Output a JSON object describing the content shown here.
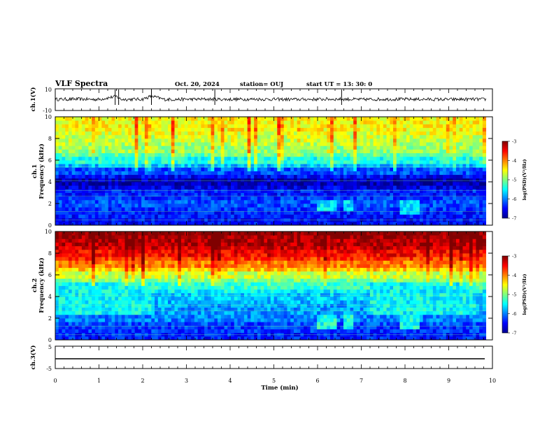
{
  "header": {
    "title": "VLF Spectra",
    "date": "Oct. 20, 2024",
    "station": "station= OUJ",
    "start": "start  UT =  13: 30: 0"
  },
  "chart_data": [
    {
      "type": "line",
      "name": "ch1-waveform",
      "ylabel": "ch.1(V)",
      "ylim": [
        -10,
        10
      ],
      "yticks": [
        "10",
        "-10"
      ],
      "x": [
        0,
        0.5,
        1.0,
        1.4,
        1.5,
        2.0,
        2.2,
        2.5,
        3.0,
        3.5,
        4.0,
        4.5,
        5.0,
        5.5,
        6.0,
        6.5,
        7.0,
        7.5,
        8.0,
        8.5,
        9.0,
        9.5,
        9.8
      ],
      "y": [
        0,
        0.3,
        -0.2,
        5.5,
        -0.1,
        0.2,
        6.0,
        -0.3,
        0.1,
        0.2,
        -0.1,
        0.3,
        0.0,
        -0.2,
        0.1,
        0.4,
        -0.3,
        0.2,
        0.1,
        0.0,
        -0.2,
        0.1,
        0.0
      ],
      "xlim": [
        0,
        10
      ]
    },
    {
      "type": "heatmap",
      "name": "ch1-spectrogram",
      "ylabel": "ch.1 Frequency (kHz)",
      "ylim": [
        0,
        10
      ],
      "yticks": [
        "0",
        "2",
        "4",
        "6",
        "8",
        "10"
      ],
      "xlim": [
        0,
        10
      ],
      "data_end_min": 9.85,
      "freq_khz": [
        0.5,
        1,
        1.5,
        2,
        2.5,
        3,
        3.5,
        4,
        4.5,
        5,
        5.5,
        6,
        6.5,
        7,
        7.5,
        8,
        8.5,
        9,
        9.5,
        10
      ],
      "log_psd": [
        -6.5,
        -6.4,
        -6.3,
        -6.2,
        -6.3,
        -6.4,
        -6.6,
        -6.8,
        -6.5,
        -6.2,
        -5.8,
        -5.4,
        -5.1,
        -4.9,
        -4.8,
        -4.7,
        -4.6,
        -4.5,
        -4.5,
        -4.5
      ],
      "events": [
        {
          "t_start": 5.95,
          "t_end": 6.45,
          "f_low": 1.3,
          "f_high": 2.3,
          "log_psd": -5.6
        },
        {
          "t_start": 6.6,
          "t_end": 6.8,
          "f_low": 1.3,
          "f_high": 2.3,
          "log_psd": -5.6
        },
        {
          "t_start": 7.9,
          "t_end": 8.35,
          "f_low": 1.0,
          "f_high": 2.4,
          "log_psd": -5.6
        }
      ],
      "colorbar": {
        "label": "log(PSD)(V²/Hz)",
        "min": -7,
        "max": -3,
        "ticks": [
          "-3",
          "-4",
          "-5",
          "-6",
          "-7"
        ]
      }
    },
    {
      "type": "heatmap",
      "name": "ch2-spectrogram",
      "ylabel": "ch.2 Frequency (kHz)",
      "ylim": [
        0,
        10
      ],
      "yticks": [
        "0",
        "2",
        "4",
        "6",
        "8",
        "10"
      ],
      "xlim": [
        0,
        10
      ],
      "data_end_min": 9.85,
      "freq_khz": [
        0.5,
        1,
        1.5,
        2,
        2.5,
        3,
        3.5,
        4,
        4.5,
        5,
        5.5,
        6,
        6.5,
        7,
        7.5,
        8,
        8.5,
        9,
        9.5,
        10
      ],
      "log_psd": [
        -6.4,
        -6.3,
        -6.2,
        -6.0,
        -5.9,
        -5.9,
        -5.8,
        -5.7,
        -5.5,
        -5.3,
        -5.0,
        -4.7,
        -4.3,
        -4.0,
        -3.7,
        -3.5,
        -3.3,
        -3.2,
        -3.1,
        -3.0
      ],
      "events": [
        {
          "t_start": 5.95,
          "t_end": 6.45,
          "f_low": 1.0,
          "f_high": 2.3,
          "log_psd": -5.4
        },
        {
          "t_start": 6.6,
          "t_end": 6.8,
          "f_low": 1.0,
          "f_high": 2.3,
          "log_psd": -5.4
        },
        {
          "t_start": 7.85,
          "t_end": 8.35,
          "f_low": 1.0,
          "f_high": 2.4,
          "log_psd": -5.4
        },
        {
          "t_start": 0.0,
          "t_end": 2.2,
          "f_low": 2.5,
          "f_high": 5.2,
          "log_psd": -5.5
        },
        {
          "t_start": 7.2,
          "t_end": 9.6,
          "f_low": 2.5,
          "f_high": 5.2,
          "log_psd": -5.5
        }
      ],
      "colorbar": {
        "label": "log(PSD)(V²/Hz)",
        "min": -7,
        "max": -3,
        "ticks": [
          "-3",
          "-4",
          "-5",
          "-6",
          "-7"
        ]
      }
    },
    {
      "type": "line",
      "name": "ch3-waveform",
      "ylabel": "ch.3(V)",
      "ylim": [
        -5,
        5
      ],
      "yticks": [
        "5",
        "0",
        "-5"
      ],
      "x": [
        0,
        9.85
      ],
      "y": [
        -1.8,
        -1.8
      ],
      "xlim": [
        0,
        10
      ]
    }
  ],
  "xaxis": {
    "label": "Time (min)",
    "ticks": [
      "0",
      "1",
      "2",
      "3",
      "4",
      "5",
      "6",
      "7",
      "8",
      "9",
      "10"
    ]
  },
  "colors": {
    "jet": [
      "#00008f",
      "#0000ff",
      "#007fff",
      "#00ffff",
      "#7fff7f",
      "#ffff00",
      "#ff7f00",
      "#ff0000",
      "#7f0000"
    ]
  }
}
